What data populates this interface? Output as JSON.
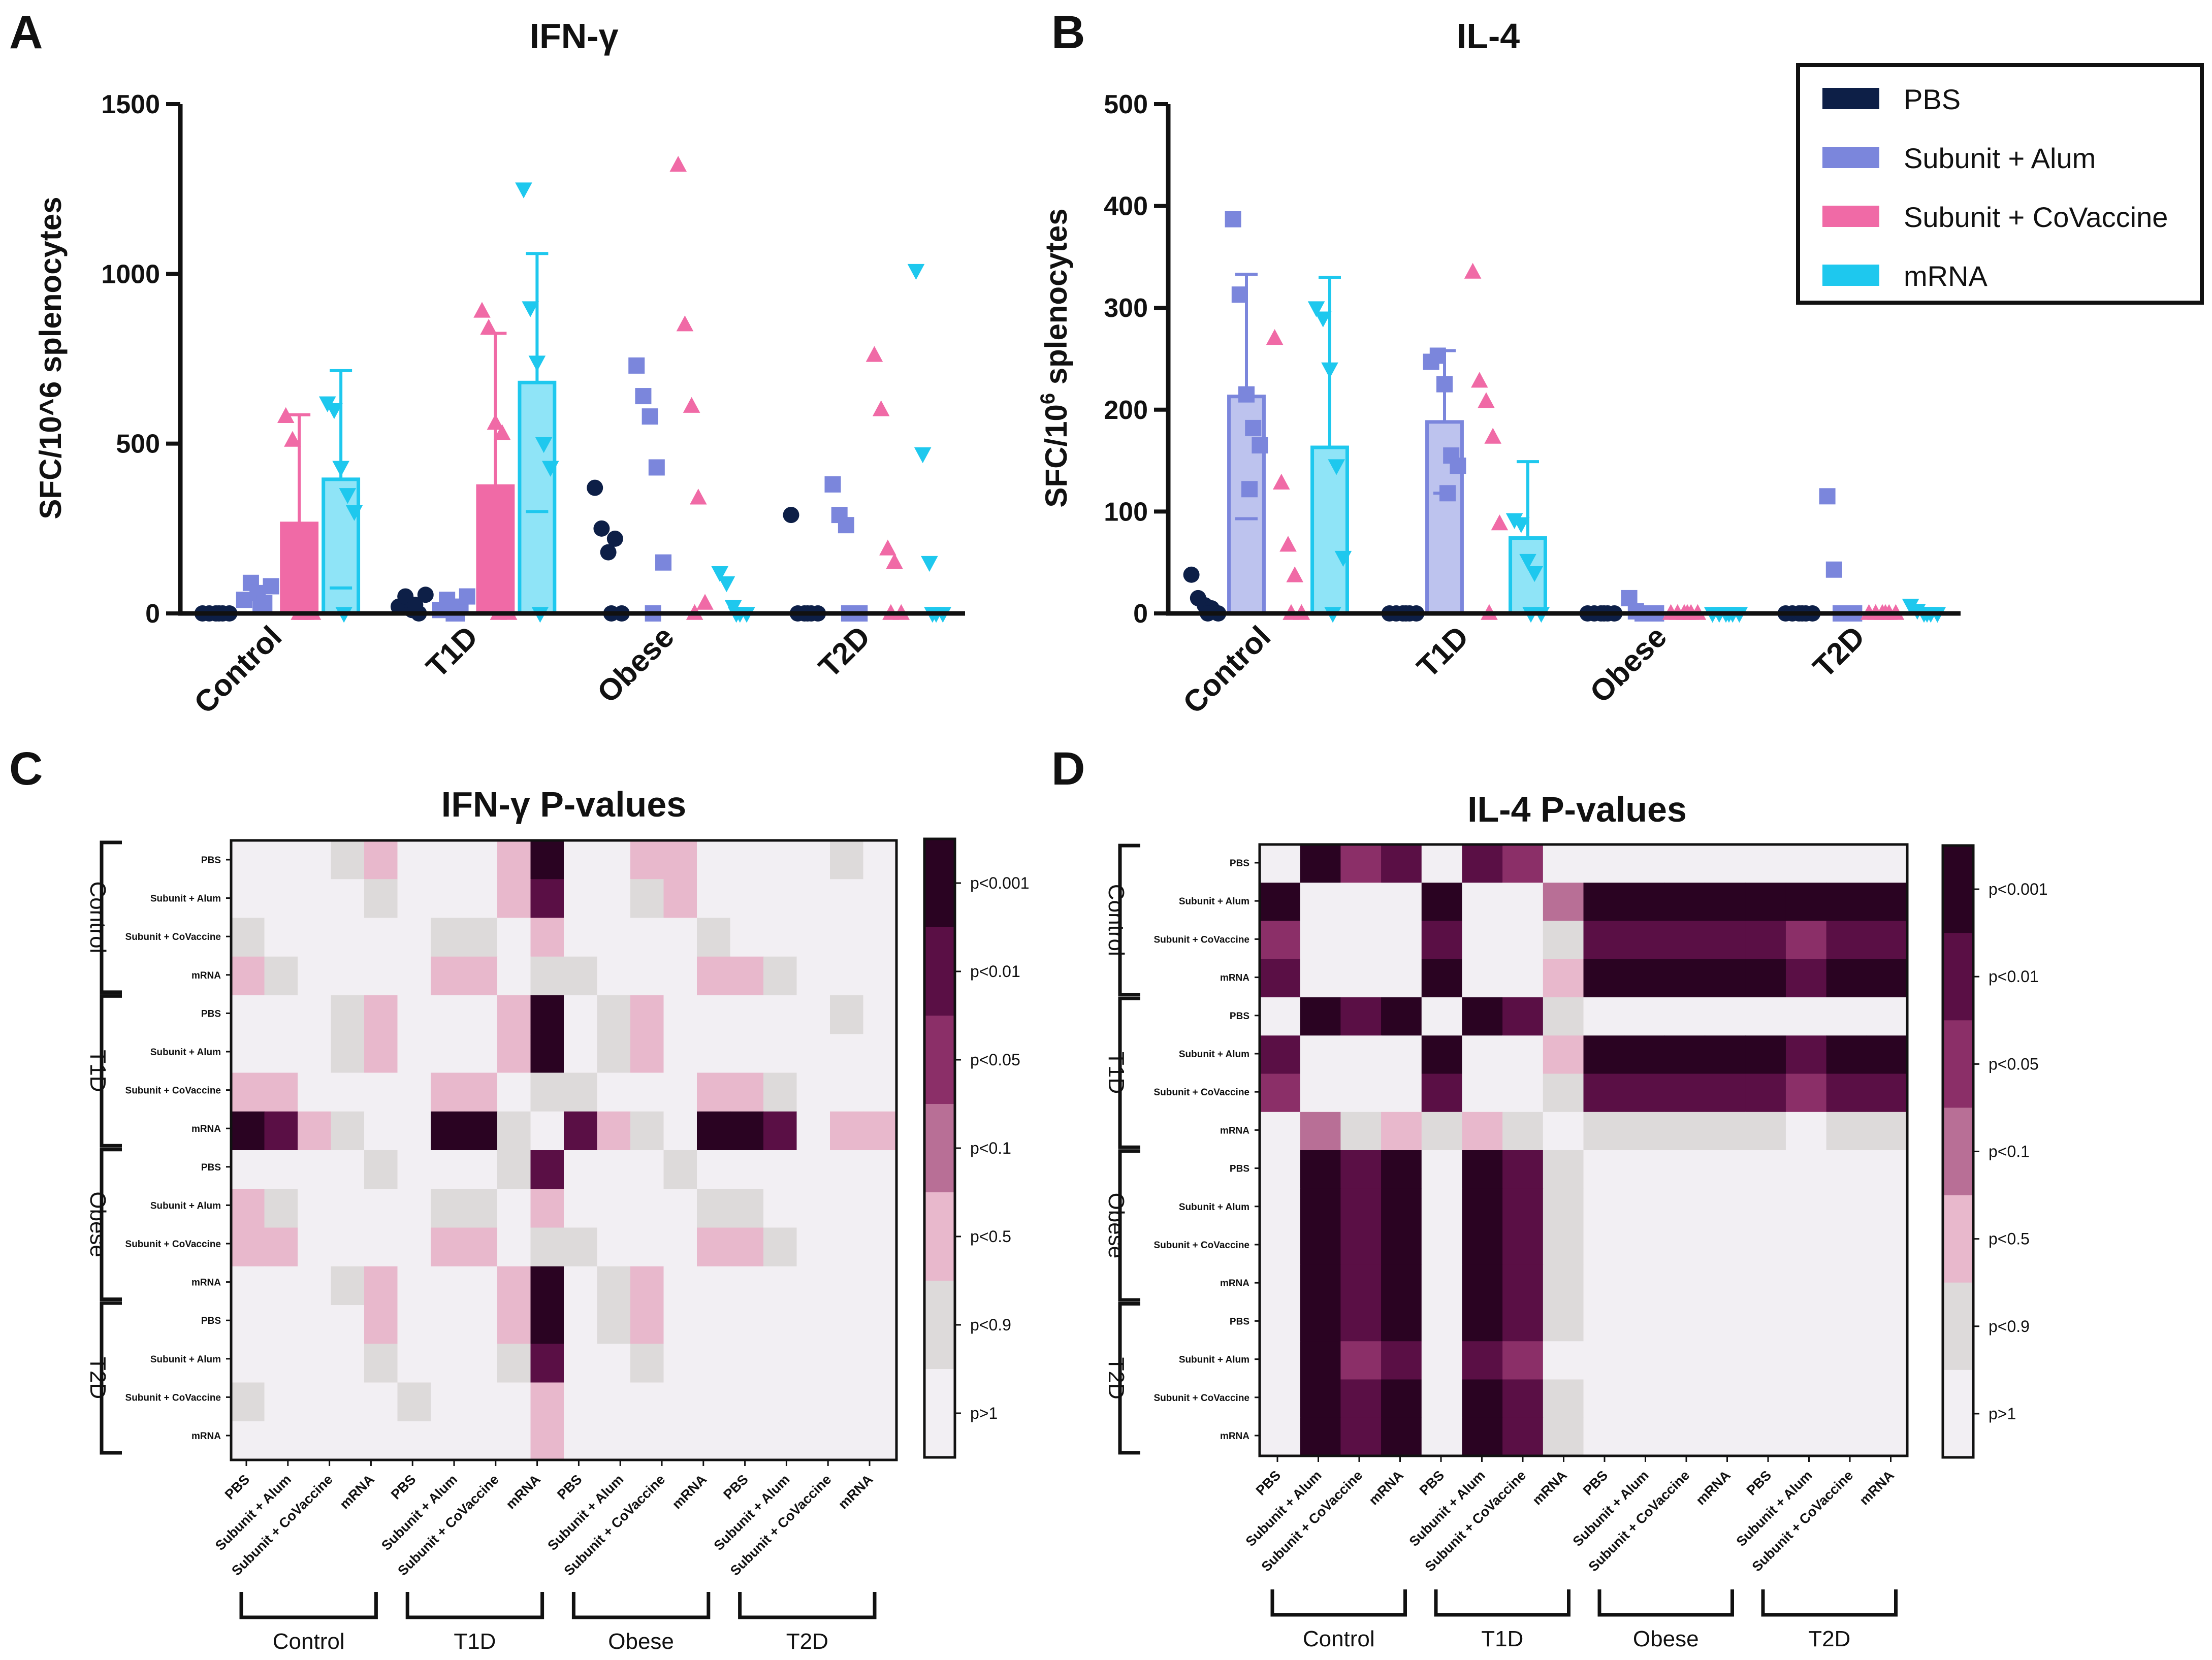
{
  "panels": {
    "A": {
      "letter": "A"
    },
    "B": {
      "letter": "B"
    },
    "C": {
      "letter": "C"
    },
    "D": {
      "letter": "D"
    }
  },
  "legend": {
    "items": [
      {
        "label": "PBS",
        "color": "#0d1f47"
      },
      {
        "label": "Subunit + Alum",
        "color": "#7b86dc"
      },
      {
        "label": "Subunit + CoVaccine",
        "color": "#f06aa6"
      },
      {
        "label": "mRNA",
        "color": "#1ec8ee"
      }
    ]
  },
  "colors": {
    "PBS": "#0d1f47",
    "Alum": "#7b86dc",
    "CoVaccine": "#f06aa6",
    "mRNA": "#1ec8ee",
    "heat_scale": [
      "#f2eff3",
      "#dddada",
      "#e8b8cc",
      "#b86f96",
      "#8b2f68",
      "#5a0f45",
      "#2a0322"
    ]
  },
  "chart_data": [
    {
      "id": "A",
      "type": "bar",
      "title": "IFN-γ",
      "ylabel": "SFC/10^6 splenocytes",
      "ylim": [
        0,
        1500
      ],
      "yticks": [
        "0",
        "500",
        "1000",
        "1500"
      ],
      "categories": [
        "Control",
        "T1D",
        "Obese",
        "T2D"
      ],
      "series": [
        {
          "name": "PBS",
          "values": [
            0,
            0,
            0,
            0
          ],
          "sd": [
            0,
            0,
            0,
            0
          ],
          "marker": "circle",
          "points": [
            [
              0,
              0,
              0,
              0,
              0,
              0
            ],
            [
              20,
              50,
              10,
              0,
              55,
              25
            ],
            [
              370,
              250,
              180,
              220,
              0,
              0
            ],
            [
              290,
              0,
              0,
              0,
              0,
              0
            ]
          ]
        },
        {
          "name": "Subunit + Alum",
          "values": [
            0,
            0,
            0,
            0
          ],
          "sd": [
            0,
            0,
            0,
            0
          ],
          "marker": "square",
          "points": [
            [
              40,
              90,
              60,
              30,
              80,
              20
            ],
            [
              10,
              40,
              0,
              20,
              50,
              0
            ],
            [
              730,
              640,
              580,
              430,
              150,
              0
            ],
            [
              380,
              290,
              260,
              0,
              0,
              0
            ]
          ]
        },
        {
          "name": "Subunit + CoVaccine",
          "values": [
            265,
            375,
            0,
            0
          ],
          "sd": [
            320,
            450,
            0,
            0
          ],
          "marker": "triangle-up",
          "points": [
            [
              580,
              510,
              0,
              0,
              0,
              0
            ],
            [
              890,
              840,
              560,
              530,
              0,
              0
            ],
            [
              1320,
              850,
              610,
              340,
              30,
              0
            ],
            [
              760,
              600,
              190,
              150,
              0,
              0
            ]
          ]
        },
        {
          "name": "mRNA",
          "values": [
            395,
            680,
            0,
            0
          ],
          "sd": [
            320,
            380,
            0,
            0
          ],
          "marker": "triangle-down",
          "points": [
            [
              620,
              600,
              430,
              350,
              300,
              0
            ],
            [
              1250,
              900,
              740,
              500,
              430,
              0
            ],
            [
              120,
              90,
              20,
              0,
              0,
              0
            ],
            [
              1010,
              470,
              150,
              0,
              0,
              0
            ]
          ]
        }
      ]
    },
    {
      "id": "B",
      "type": "bar",
      "title": "IL-4",
      "ylabel": "SFC/10",
      "ylabel_sup": "6",
      "ylabel_tail": " splenocytes",
      "ylim": [
        0,
        500
      ],
      "yticks": [
        "0",
        "100",
        "200",
        "300",
        "400",
        "500"
      ],
      "categories": [
        "Control",
        "T1D",
        "Obese",
        "T2D"
      ],
      "series": [
        {
          "name": "PBS",
          "values": [
            0,
            0,
            0,
            0
          ],
          "sd": [
            0,
            0,
            0,
            0
          ],
          "marker": "circle",
          "points": [
            [
              38,
              15,
              8,
              5,
              0,
              0
            ],
            [
              0,
              0,
              0,
              0,
              0,
              0
            ],
            [
              0,
              0,
              0,
              0,
              0,
              0
            ],
            [
              0,
              0,
              0,
              0,
              0,
              0
            ]
          ]
        },
        {
          "name": "Subunit + Alum",
          "values": [
            213,
            188,
            0,
            0
          ],
          "sd": [
            120,
            70,
            0,
            0
          ],
          "marker": "square",
          "points": [
            [
              387,
              313,
              215,
              182,
              165,
              122
            ],
            [
              247,
              253,
              225,
              155,
              145,
              118
            ],
            [
              15,
              2,
              0,
              0,
              0,
              0
            ],
            [
              115,
              43,
              0,
              0,
              0,
              0
            ]
          ]
        },
        {
          "name": "Subunit + CoVaccine",
          "values": [
            0,
            0,
            0,
            0
          ],
          "sd": [
            0,
            0,
            0,
            0
          ],
          "marker": "triangle-up",
          "points": [
            [
              270,
              128,
              67,
              37,
              0,
              0
            ],
            [
              335,
              228,
              208,
              173,
              88,
              0
            ],
            [
              0,
              0,
              0,
              0,
              0,
              0
            ],
            [
              0,
              0,
              0,
              0,
              0,
              0
            ]
          ]
        },
        {
          "name": "mRNA",
          "values": [
            163,
            74,
            0,
            0
          ],
          "sd": [
            167,
            75,
            0,
            0
          ],
          "marker": "triangle-down",
          "points": [
            [
              300,
              290,
              240,
              145,
              55,
              0
            ],
            [
              92,
              88,
              52,
              40,
              0,
              0
            ],
            [
              0,
              0,
              0,
              0,
              0,
              0
            ],
            [
              8,
              3,
              0,
              0,
              0,
              0
            ]
          ]
        }
      ]
    },
    {
      "id": "C",
      "type": "heatmap",
      "title": "IFN-γ P-values",
      "groups": [
        "Control",
        "T1D",
        "Obese",
        "T2D"
      ],
      "row_labels": [
        "PBS",
        "Subunit + Alum",
        "Subunit + CoVaccine",
        "mRNA"
      ],
      "col_labels": [
        "PBS",
        "Subunit + Alum",
        "Subunit + CoVaccine",
        "mRNA"
      ],
      "scale_labels": [
        "p<0.001",
        "p<0.01",
        "p<0.05",
        "p<0.1",
        "p<0.5",
        "p<0.9",
        "p>1"
      ],
      "scale_note": "level 0 = p>1 ... level 6 = p<0.001",
      "matrix": [
        [
          0,
          0,
          0,
          1,
          2,
          0,
          0,
          0,
          2,
          6,
          0,
          0,
          2,
          2,
          0,
          0,
          0,
          0,
          1,
          0
        ],
        [
          0,
          0,
          0,
          0,
          1,
          0,
          0,
          0,
          2,
          5,
          0,
          0,
          1,
          2,
          0,
          0,
          0,
          0,
          0,
          0
        ],
        [
          1,
          0,
          0,
          0,
          0,
          0,
          1,
          1,
          0,
          2,
          0,
          0,
          0,
          0,
          1,
          0,
          0,
          0,
          0,
          0
        ],
        [
          2,
          1,
          0,
          0,
          0,
          0,
          2,
          2,
          0,
          1,
          1,
          0,
          0,
          0,
          2,
          2,
          1,
          0,
          0,
          0
        ],
        [
          0,
          0,
          0,
          1,
          2,
          0,
          0,
          0,
          2,
          6,
          0,
          1,
          2,
          0,
          0,
          0,
          0,
          0,
          1,
          0
        ],
        [
          0,
          0,
          0,
          1,
          2,
          0,
          0,
          0,
          2,
          6,
          0,
          1,
          2,
          0,
          0,
          0,
          0,
          0,
          0,
          0
        ],
        [
          2,
          2,
          0,
          0,
          0,
          0,
          2,
          2,
          0,
          1,
          1,
          0,
          0,
          0,
          2,
          2,
          1,
          0,
          0,
          0
        ],
        [
          6,
          5,
          2,
          1,
          0,
          0,
          6,
          6,
          1,
          0,
          5,
          2,
          1,
          0,
          6,
          6,
          5,
          0,
          2,
          2
        ],
        [
          0,
          0,
          0,
          0,
          1,
          0,
          0,
          0,
          1,
          5,
          0,
          0,
          0,
          1,
          0,
          0,
          0,
          0,
          0,
          0
        ],
        [
          2,
          1,
          0,
          0,
          0,
          0,
          1,
          1,
          0,
          2,
          0,
          0,
          0,
          0,
          1,
          1,
          0,
          0,
          0,
          0
        ],
        [
          2,
          2,
          0,
          0,
          0,
          0,
          2,
          2,
          0,
          1,
          1,
          0,
          0,
          0,
          2,
          2,
          1,
          0,
          0,
          0
        ],
        [
          0,
          0,
          0,
          1,
          2,
          0,
          0,
          0,
          2,
          6,
          0,
          1,
          2,
          0,
          0,
          0,
          0,
          0,
          0,
          0
        ],
        [
          0,
          0,
          0,
          0,
          2,
          0,
          0,
          0,
          2,
          6,
          0,
          1,
          2,
          0,
          0,
          0,
          0,
          0,
          0,
          0
        ],
        [
          0,
          0,
          0,
          0,
          1,
          0,
          0,
          0,
          1,
          5,
          0,
          0,
          1,
          0,
          0,
          0,
          0,
          0,
          0,
          0
        ],
        [
          1,
          0,
          0,
          0,
          0,
          1,
          0,
          0,
          0,
          2,
          0,
          0,
          0,
          0,
          0,
          0,
          0,
          0,
          0,
          0
        ],
        [
          0,
          0,
          0,
          0,
          0,
          0,
          0,
          0,
          0,
          2,
          0,
          0,
          0,
          0,
          0,
          0,
          0,
          0,
          0,
          0
        ]
      ]
    },
    {
      "id": "D",
      "type": "heatmap",
      "title": "IL-4 P-values",
      "groups": [
        "Control",
        "T1D",
        "Obese",
        "T2D"
      ],
      "row_labels": [
        "PBS",
        "Subunit + Alum",
        "Subunit + CoVaccine",
        "mRNA"
      ],
      "col_labels": [
        "PBS",
        "Subunit + Alum",
        "Subunit + CoVaccine",
        "mRNA"
      ],
      "scale_labels": [
        "p<0.001",
        "p<0.01",
        "p<0.05",
        "p<0.1",
        "p<0.5",
        "p<0.9",
        "p>1"
      ],
      "scale_note": "level 0 = p>1 ... level 6 = p<0.001",
      "matrix": [
        [
          0,
          6,
          4,
          5,
          0,
          5,
          4,
          0,
          0,
          0,
          0,
          0,
          0,
          0,
          0,
          0
        ],
        [
          6,
          0,
          0,
          0,
          6,
          0,
          0,
          3,
          6,
          6,
          6,
          6,
          6,
          6,
          6,
          6
        ],
        [
          4,
          0,
          0,
          0,
          5,
          0,
          0,
          1,
          5,
          5,
          5,
          5,
          5,
          4,
          5,
          5
        ],
        [
          5,
          0,
          0,
          0,
          6,
          0,
          0,
          2,
          6,
          6,
          6,
          6,
          6,
          5,
          6,
          6
        ],
        [
          0,
          6,
          5,
          6,
          0,
          6,
          5,
          1,
          0,
          0,
          0,
          0,
          0,
          0,
          0,
          0
        ],
        [
          5,
          0,
          0,
          0,
          6,
          0,
          0,
          2,
          6,
          6,
          6,
          6,
          6,
          5,
          6,
          6
        ],
        [
          4,
          0,
          0,
          0,
          5,
          0,
          0,
          1,
          5,
          5,
          5,
          5,
          5,
          4,
          5,
          5
        ],
        [
          0,
          3,
          1,
          2,
          1,
          2,
          1,
          0,
          1,
          1,
          1,
          1,
          1,
          0,
          1,
          1
        ],
        [
          0,
          6,
          5,
          6,
          0,
          6,
          5,
          1,
          0,
          0,
          0,
          0,
          0,
          0,
          0,
          0
        ],
        [
          0,
          6,
          5,
          6,
          0,
          6,
          5,
          1,
          0,
          0,
          0,
          0,
          0,
          0,
          0,
          0
        ],
        [
          0,
          6,
          5,
          6,
          0,
          6,
          5,
          1,
          0,
          0,
          0,
          0,
          0,
          0,
          0,
          0
        ],
        [
          0,
          6,
          5,
          6,
          0,
          6,
          5,
          1,
          0,
          0,
          0,
          0,
          0,
          0,
          0,
          0
        ],
        [
          0,
          6,
          5,
          6,
          0,
          6,
          5,
          1,
          0,
          0,
          0,
          0,
          0,
          0,
          0,
          0
        ],
        [
          0,
          6,
          4,
          5,
          0,
          5,
          4,
          0,
          0,
          0,
          0,
          0,
          0,
          0,
          0,
          0
        ],
        [
          0,
          6,
          5,
          6,
          0,
          6,
          5,
          1,
          0,
          0,
          0,
          0,
          0,
          0,
          0,
          0
        ],
        [
          0,
          6,
          5,
          6,
          0,
          6,
          5,
          1,
          0,
          0,
          0,
          0,
          0,
          0,
          0,
          0
        ]
      ]
    }
  ]
}
